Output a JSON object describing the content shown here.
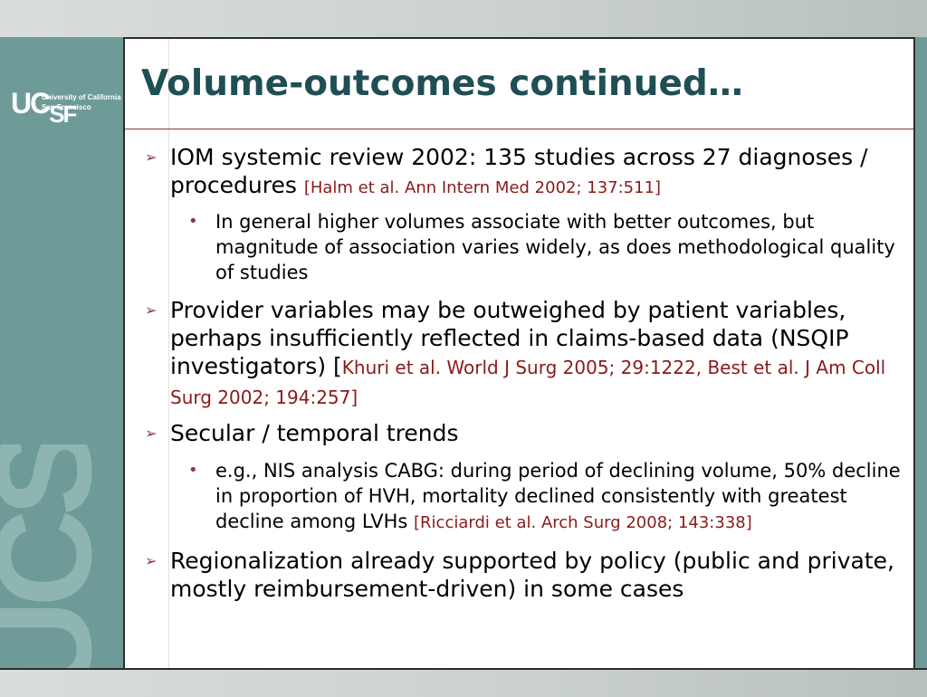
{
  "slide": {
    "title": "Volume-outcomes continued…",
    "logo": {
      "mark_uc": "UC",
      "mark_sf": "SF",
      "line1": "University of California",
      "line2": "San Francisco",
      "watermark": "UCSF"
    },
    "bullets": [
      {
        "text": "IOM systemic review 2002: 135 studies across 27 diagnoses / procedures ",
        "cite": "[Halm et al. Ann Intern Med 2002; 137:511]",
        "sub": [
          {
            "text": "In general higher volumes associate with better outcomes, but magnitude of association varies widely, as does methodological quality of studies",
            "cite": ""
          }
        ]
      },
      {
        "text": "Provider variables may be outweighed by patient variables, perhaps insufficiently reflected in claims-based data (NSQIP investigators) [",
        "cite": "Khuri et al. World J Surg 2005; 29:1222, Best et al. J Am Coll Surg 2002; 194:257]",
        "sub": []
      },
      {
        "text": "Secular / temporal trends",
        "cite": "",
        "sub": [
          {
            "text": "e.g., NIS analysis CABG: during period of declining volume, 50% decline in proportion of HVH, mortality declined consistently with greatest decline among LVHs ",
            "cite": "[Ricciardi et al. Arch Surg 2008; 143:338]"
          }
        ]
      },
      {
        "text": "Regionalization already supported by policy (public and private, mostly reimbursement-driven) in some cases",
        "cite": "",
        "sub": []
      }
    ]
  },
  "colors": {
    "title": "#1f4f55",
    "panel": "#6e9b98",
    "citation": "#8b1a1a",
    "bullet_marker": "#8b3a3a"
  }
}
